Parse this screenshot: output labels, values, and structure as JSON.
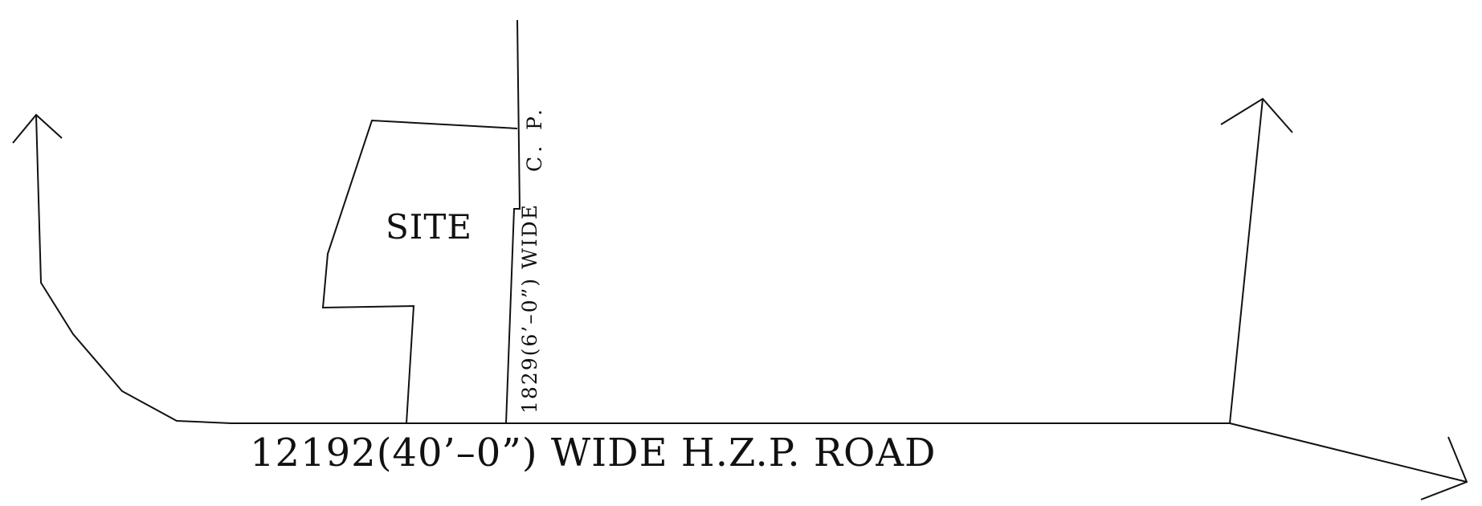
{
  "drawing": {
    "site_label": "SITE",
    "road_label": "12192(40’–0”) WIDE H.Z.P. ROAD",
    "lane_label": "1829(6’–0”) WIDE",
    "cp_label": "C. P."
  },
  "colors": {
    "line": "#111111",
    "background": "#ffffff"
  }
}
